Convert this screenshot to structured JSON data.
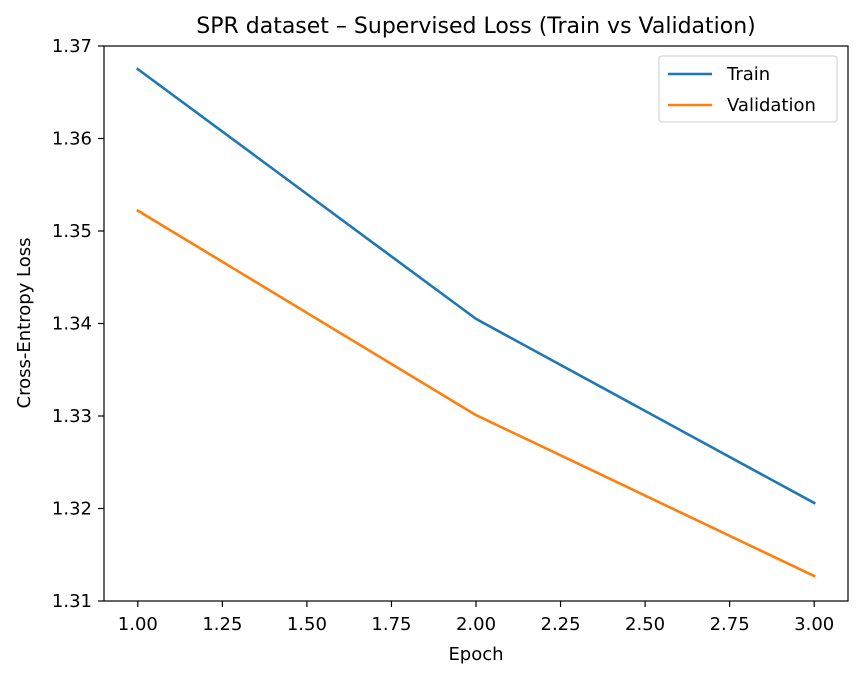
{
  "chart_data": {
    "type": "line",
    "title": "SPR dataset – Supervised Loss (Train vs Validation)",
    "xlabel": "Epoch",
    "ylabel": "Cross-Entropy Loss",
    "xlim": [
      0.9,
      3.1
    ],
    "ylim": [
      1.31,
      1.37
    ],
    "xticks": [
      "1.00",
      "1.25",
      "1.50",
      "1.75",
      "2.00",
      "2.25",
      "2.50",
      "2.75",
      "3.00"
    ],
    "yticks": [
      "1.31",
      "1.32",
      "1.33",
      "1.34",
      "1.35",
      "1.36",
      "1.37"
    ],
    "grid": false,
    "legend_position": "top-right",
    "x": [
      1,
      2,
      3
    ],
    "series": [
      {
        "name": "Train",
        "color": "#1f77b4",
        "values": [
          1.3675,
          1.3405,
          1.3206
        ]
      },
      {
        "name": "Validation",
        "color": "#ff7f0e",
        "values": [
          1.3522,
          1.3301,
          1.3127
        ]
      }
    ]
  }
}
